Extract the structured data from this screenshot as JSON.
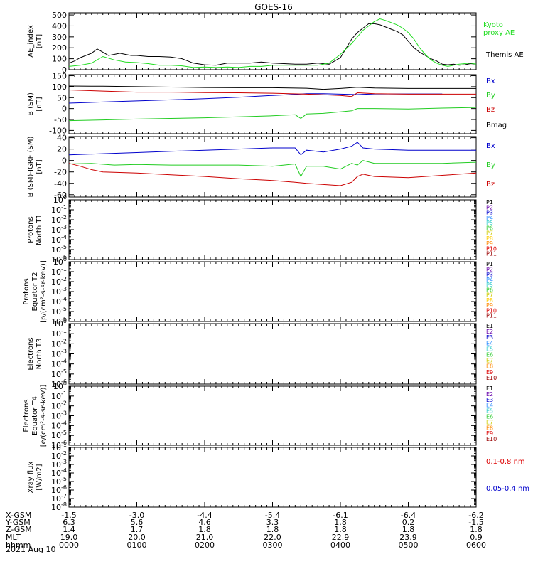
{
  "title": "GOES-16",
  "date_label": "2021 Aug 10",
  "chart_data": [
    {
      "type": "line",
      "ylabel": [
        "AE_index",
        "[nT]"
      ],
      "ylim": [
        0,
        520
      ],
      "yticks": [
        0,
        100,
        200,
        300,
        400,
        500
      ],
      "log": false,
      "legend": [
        {
          "text": "Kyoto",
          "color": "#22dd22"
        },
        {
          "text": "proxy AE",
          "color": "#22dd22"
        },
        {
          "text": "Themis AE",
          "color": "#000000"
        }
      ],
      "series": [
        {
          "color": "#000000",
          "x": [
            0,
            5,
            10,
            15,
            20,
            25,
            30,
            35,
            40,
            45,
            50,
            55,
            60,
            70,
            80,
            90,
            100,
            110,
            120,
            130,
            140,
            150,
            160,
            170,
            180,
            190,
            200,
            210,
            220,
            230,
            240,
            250,
            255,
            260,
            265,
            270,
            275,
            280,
            285,
            290,
            295,
            300,
            305,
            310,
            315,
            320,
            325,
            330,
            335,
            340,
            345,
            350,
            355,
            360
          ],
          "y": [
            60,
            80,
            110,
            130,
            150,
            190,
            160,
            130,
            140,
            150,
            140,
            130,
            130,
            120,
            120,
            115,
            100,
            60,
            45,
            40,
            60,
            60,
            60,
            70,
            60,
            55,
            50,
            50,
            60,
            50,
            110,
            280,
            340,
            380,
            420,
            420,
            410,
            390,
            370,
            350,
            320,
            260,
            200,
            160,
            130,
            100,
            80,
            50,
            45,
            50,
            40,
            45,
            55,
            50
          ]
        },
        {
          "color": "#22dd22",
          "x": [
            0,
            10,
            20,
            30,
            40,
            50,
            60,
            70,
            80,
            90,
            100,
            110,
            120,
            130,
            140,
            150,
            160,
            170,
            180,
            190,
            200,
            210,
            220,
            230,
            240,
            250,
            255,
            260,
            265,
            270,
            275,
            280,
            285,
            290,
            295,
            300,
            305,
            310,
            315,
            320,
            325,
            330,
            335,
            340,
            345,
            350,
            355,
            360
          ],
          "y": [
            30,
            40,
            60,
            120,
            90,
            70,
            65,
            55,
            40,
            40,
            35,
            20,
            25,
            20,
            25,
            20,
            30,
            30,
            40,
            40,
            40,
            40,
            40,
            60,
            140,
            240,
            300,
            360,
            400,
            440,
            465,
            450,
            430,
            410,
            380,
            340,
            280,
            200,
            140,
            90,
            60,
            40,
            30,
            40,
            50,
            55,
            60,
            50
          ]
        }
      ]
    },
    {
      "type": "line",
      "ylabel": [
        "B (SM)",
        "[nT]"
      ],
      "ylim": [
        -115,
        155
      ],
      "yticks": [
        -100,
        -50,
        0,
        50,
        100,
        150
      ],
      "log": false,
      "legend": [
        {
          "text": "Bx",
          "color": "#0000cc"
        },
        {
          "text": "By",
          "color": "#22cc22"
        },
        {
          "text": "Bz",
          "color": "#cc0000"
        },
        {
          "text": "Bmag",
          "color": "#000000"
        }
      ],
      "series": [
        {
          "color": "#000000",
          "x": [
            0,
            30,
            60,
            90,
            120,
            150,
            180,
            210,
            225,
            240,
            255,
            270,
            300,
            330,
            360
          ],
          "y": [
            103,
            102,
            100,
            98,
            96,
            95,
            95,
            93,
            88,
            92,
            97,
            94,
            92,
            92,
            92
          ]
        },
        {
          "color": "#0000cc",
          "x": [
            0,
            30,
            60,
            90,
            120,
            150,
            180,
            200,
            210,
            225,
            240,
            255,
            270,
            300,
            330
          ],
          "y": [
            25,
            30,
            35,
            40,
            45,
            52,
            60,
            65,
            68,
            68,
            66,
            64,
            67,
            67,
            67
          ]
        },
        {
          "color": "#cc0000",
          "x": [
            0,
            30,
            60,
            90,
            120,
            150,
            180,
            210,
            225,
            240,
            250,
            255,
            270,
            300,
            330,
            360
          ],
          "y": [
            85,
            80,
            75,
            75,
            73,
            72,
            70,
            66,
            63,
            60,
            55,
            72,
            68,
            66,
            66,
            66
          ]
        },
        {
          "color": "#22cc22",
          "x": [
            0,
            30,
            60,
            90,
            120,
            150,
            180,
            200,
            205,
            210,
            225,
            240,
            250,
            255,
            270,
            300,
            330,
            360
          ],
          "y": [
            -55,
            -52,
            -48,
            -45,
            -42,
            -38,
            -33,
            -28,
            -45,
            -25,
            -22,
            -15,
            -10,
            0,
            0,
            -2,
            2,
            5
          ]
        }
      ]
    },
    {
      "type": "line",
      "ylabel": [
        "B (SM)-IGRF (SM)",
        "[nT]"
      ],
      "ylim": [
        -64,
        42
      ],
      "yticks": [
        -60,
        -40,
        -20,
        0,
        20,
        40
      ],
      "log": false,
      "legend": [
        {
          "text": "Bx",
          "color": "#0000cc"
        },
        {
          "text": "By",
          "color": "#22cc22"
        },
        {
          "text": "Bz",
          "color": "#cc0000"
        }
      ],
      "series": [
        {
          "color": "#0000cc",
          "x": [
            0,
            30,
            60,
            90,
            120,
            150,
            180,
            200,
            205,
            210,
            225,
            240,
            250,
            255,
            260,
            270,
            300,
            330,
            360
          ],
          "y": [
            10,
            12,
            14,
            16,
            18,
            20,
            22,
            22,
            10,
            18,
            15,
            20,
            25,
            32,
            22,
            20,
            18,
            18,
            18
          ]
        },
        {
          "color": "#22cc22",
          "x": [
            0,
            20,
            40,
            60,
            90,
            120,
            150,
            180,
            200,
            205,
            210,
            225,
            240,
            250,
            255,
            260,
            270,
            300,
            330,
            360
          ],
          "y": [
            -6,
            -5,
            -8,
            -7,
            -8,
            -8,
            -8,
            -10,
            -6,
            -28,
            -10,
            -10,
            -15,
            -5,
            -8,
            0,
            -5,
            -5,
            -5,
            -3
          ]
        },
        {
          "color": "#cc0000",
          "x": [
            0,
            10,
            20,
            30,
            60,
            90,
            120,
            150,
            180,
            200,
            210,
            225,
            240,
            250,
            255,
            260,
            270,
            300,
            330,
            360
          ],
          "y": [
            -5,
            -10,
            -16,
            -20,
            -22,
            -25,
            -28,
            -32,
            -35,
            -38,
            -40,
            -42,
            -44,
            -38,
            -28,
            -24,
            -28,
            -30,
            -26,
            -22
          ]
        }
      ]
    },
    {
      "type": "line",
      "ylabel": [
        "Protons",
        "North T1"
      ],
      "ylim": [
        -6,
        0
      ],
      "yticks": [
        -6,
        -5,
        -4,
        -3,
        -2,
        -1,
        0
      ],
      "log": true,
      "legend": [
        {
          "text": "P1",
          "color": "#000000"
        },
        {
          "text": "P2",
          "color": "#6600aa"
        },
        {
          "text": "P3",
          "color": "#0000cc"
        },
        {
          "text": "P4",
          "color": "#2288ff"
        },
        {
          "text": "P5",
          "color": "#33cccc"
        },
        {
          "text": "P6",
          "color": "#33cc33"
        },
        {
          "text": "P7",
          "color": "#cccc00"
        },
        {
          "text": "P8",
          "color": "#ffcc00"
        },
        {
          "text": "P9",
          "color": "#ff8800"
        },
        {
          "text": "P10",
          "color": "#dd0000"
        },
        {
          "text": "P11",
          "color": "#990000"
        }
      ],
      "series": []
    },
    {
      "type": "line",
      "ylabel": [
        "Protons",
        "Equator T2",
        "[p/(cm²-s-sr-keV)]"
      ],
      "ylim": [
        -6,
        0
      ],
      "yticks": [
        -6,
        -5,
        -4,
        -3,
        -2,
        -1,
        0
      ],
      "log": true,
      "legend": [
        {
          "text": "P1",
          "color": "#000000"
        },
        {
          "text": "P2",
          "color": "#6600aa"
        },
        {
          "text": "P3",
          "color": "#0000cc"
        },
        {
          "text": "P4",
          "color": "#2288ff"
        },
        {
          "text": "P5",
          "color": "#33cccc"
        },
        {
          "text": "P6",
          "color": "#33cc33"
        },
        {
          "text": "P7",
          "color": "#cccc00"
        },
        {
          "text": "P8",
          "color": "#ffcc00"
        },
        {
          "text": "P9",
          "color": "#ff8800"
        },
        {
          "text": "P10",
          "color": "#dd0000"
        },
        {
          "text": "P11",
          "color": "#990000"
        }
      ],
      "series": []
    },
    {
      "type": "line",
      "ylabel": [
        "Electrons",
        "North T3"
      ],
      "ylim": [
        -6,
        0
      ],
      "yticks": [
        -6,
        -5,
        -4,
        -3,
        -2,
        -1,
        0
      ],
      "log": true,
      "legend": [
        {
          "text": "E1",
          "color": "#000000"
        },
        {
          "text": "E2",
          "color": "#6600aa"
        },
        {
          "text": "E3",
          "color": "#0000cc"
        },
        {
          "text": "E4",
          "color": "#2288ff"
        },
        {
          "text": "E5",
          "color": "#33cccc"
        },
        {
          "text": "E6",
          "color": "#33cc33"
        },
        {
          "text": "E7",
          "color": "#cccc00"
        },
        {
          "text": "E8",
          "color": "#ff8800"
        },
        {
          "text": "E9",
          "color": "#dd0000"
        },
        {
          "text": "E10",
          "color": "#990000"
        }
      ],
      "series": []
    },
    {
      "type": "line",
      "ylabel": [
        "Electrons",
        "Equator T4",
        "[e/(cm²-s-sr-keV)]"
      ],
      "ylim": [
        -6,
        0
      ],
      "yticks": [
        -6,
        -5,
        -4,
        -3,
        -2,
        -1,
        0
      ],
      "log": true,
      "legend": [
        {
          "text": "E1",
          "color": "#000000"
        },
        {
          "text": "E2",
          "color": "#6600aa"
        },
        {
          "text": "E3",
          "color": "#0000cc"
        },
        {
          "text": "E4",
          "color": "#2288ff"
        },
        {
          "text": "E5",
          "color": "#33cccc"
        },
        {
          "text": "E6",
          "color": "#33cc33"
        },
        {
          "text": "E7",
          "color": "#cccc00"
        },
        {
          "text": "E8",
          "color": "#ff8800"
        },
        {
          "text": "E9",
          "color": "#dd0000"
        },
        {
          "text": "E10",
          "color": "#990000"
        }
      ],
      "series": []
    },
    {
      "type": "line",
      "ylabel": [
        "Xray flux",
        "[W/m2]"
      ],
      "ylim": [
        -8,
        -1
      ],
      "yticks": [
        -8,
        -7,
        -6,
        -5,
        -4,
        -3,
        -2,
        -1
      ],
      "log": true,
      "legend": [
        {
          "text": "0.1-0.8 nm",
          "color": "#dd0000"
        },
        {
          "text": "0.05-0.4 nm",
          "color": "#0000cc"
        }
      ],
      "series": []
    }
  ],
  "x_axis": {
    "xlim": [
      0,
      360
    ],
    "tick_x": [
      0,
      60,
      120,
      180,
      240,
      300,
      360
    ],
    "rows": [
      {
        "label": "X-GSM",
        "values": [
          "-1.5",
          "-3.0",
          "-4.4",
          "-5.4",
          "-6.1",
          "-6.4",
          "-6.2"
        ]
      },
      {
        "label": "Y-GSM",
        "values": [
          "6.3",
          "5.6",
          "4.6",
          "3.3",
          "1.8",
          "0.2",
          "-1.5"
        ]
      },
      {
        "label": "Z-GSM",
        "values": [
          "1.4",
          "1.7",
          "1.8",
          "1.8",
          "1.8",
          "1.8",
          "1.8"
        ]
      },
      {
        "label": "MLT",
        "values": [
          "19.0",
          "20.0",
          "21.0",
          "22.0",
          "22.9",
          "23.9",
          "0.9"
        ]
      },
      {
        "label": "hhmm",
        "values": [
          "0000",
          "0100",
          "0200",
          "0300",
          "0400",
          "0500",
          "0600"
        ]
      }
    ]
  }
}
